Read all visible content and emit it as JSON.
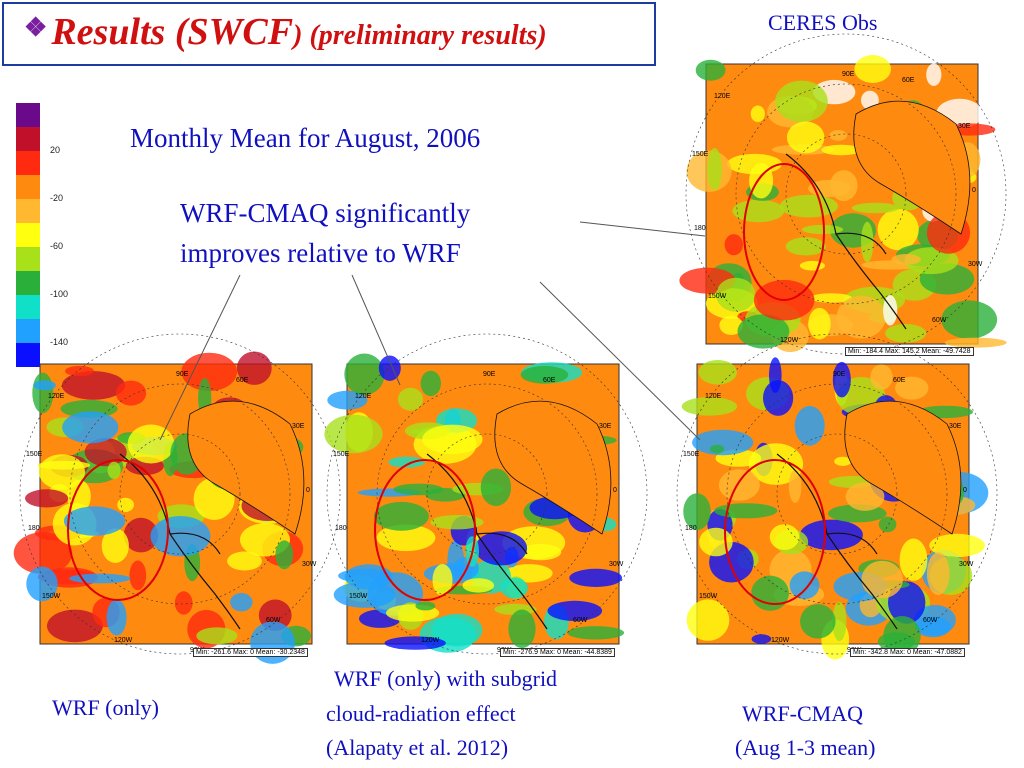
{
  "title": {
    "bullet": "❖",
    "main": "Results (SWCF",
    "sub": ") (preliminary results)"
  },
  "ceres_label": "CERES Obs",
  "monthly": "Monthly Mean for August, 2006",
  "improve_line1": "WRF-CMAQ significantly",
  "improve_line2": "improves relative to WRF",
  "colorbar": {
    "colors": [
      "#6a0a8a",
      "#c0102a",
      "#ff2a10",
      "#ff8a10",
      "#ffb830",
      "#ffff10",
      "#a8e01a",
      "#2ab03a",
      "#10e0c8",
      "#20a0ff",
      "#0a10ff"
    ],
    "ticks": [
      "20",
      "-20",
      "-60",
      "-100",
      "-140"
    ]
  },
  "maps": [
    {
      "id": "ceres",
      "stats": "Min: -184.4 Max: 145.2 Mean: -49.7428"
    },
    {
      "id": "wrf",
      "stats": "Min: -261.6 Max: 0 Mean: -30.2348"
    },
    {
      "id": "wrf_sub",
      "stats": "Min: -276.9 Max: 0 Mean: -44.8389"
    },
    {
      "id": "cmaq",
      "stats": "Min: -342.8 Max: 0 Mean: -47.0882"
    }
  ],
  "map_labels": {
    "l90e": "90E",
    "l60e": "60E",
    "l120e": "120E",
    "l30e": "30E",
    "l150e": "150E",
    "l0": "0",
    "l180": "180",
    "l30w": "30W",
    "l150w": "150W",
    "l60w": "60W",
    "l120w": "120W",
    "l90w": "90W"
  },
  "captions": {
    "wrf_only": "WRF (only)",
    "subgrid1": "WRF (only) with subgrid",
    "subgrid2": "cloud-radiation effect",
    "subgrid3": "(Alapaty et al. 2012)",
    "cmaq1": "WRF-CMAQ",
    "cmaq2": "(Aug 1-3 mean)"
  }
}
